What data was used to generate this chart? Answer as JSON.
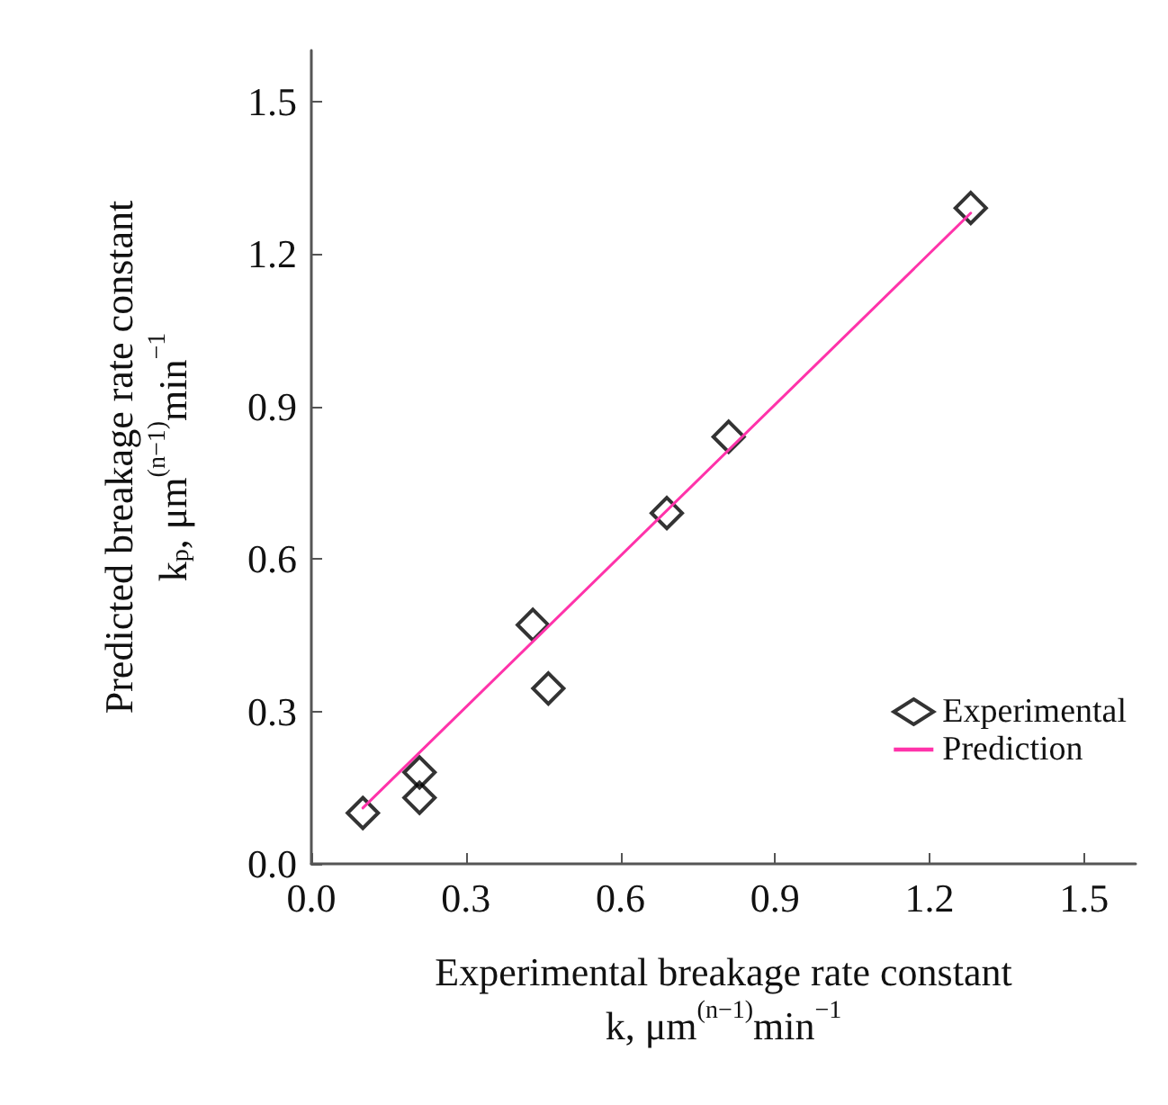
{
  "chart_data": {
    "type": "scatter",
    "xlabel": "Experimental breakage rate constant\nk, μm$^{(n−1)}$min$^{−1}$",
    "ylabel": "Predicted breakage rate constant\nk$_{p}$, μm$^{(n−1)}$min$^{−1}$",
    "xlim": [
      0,
      1.6
    ],
    "ylim": [
      0,
      1.6
    ],
    "xticks": [
      {
        "value": 0,
        "label": "0.0"
      },
      0.3,
      0.6,
      0.9,
      1.2,
      1.5
    ],
    "yticks": [
      {
        "value": 0,
        "label": "0.0"
      },
      0.3,
      0.6,
      0.9,
      1.2,
      1.5
    ],
    "grid": false,
    "legend": "bottom right",
    "series": [
      {
        "name": "Experimental",
        "marker": "diamond",
        "color": "#000000",
        "x": [
          0.1,
          0.21,
          0.21,
          0.43,
          0.46,
          0.69,
          0.81,
          1.28
        ],
        "values": [
          0.1,
          0.18,
          0.13,
          0.47,
          0.345,
          0.69,
          0.84,
          1.29
        ]
      },
      {
        "name": "Prediction",
        "type": "line",
        "marker": "none",
        "line_style": "solid",
        "color": "#ff33aa",
        "x": [
          0.1,
          1.28
        ],
        "values": [
          0.11,
          1.28
        ]
      }
    ]
  }
}
